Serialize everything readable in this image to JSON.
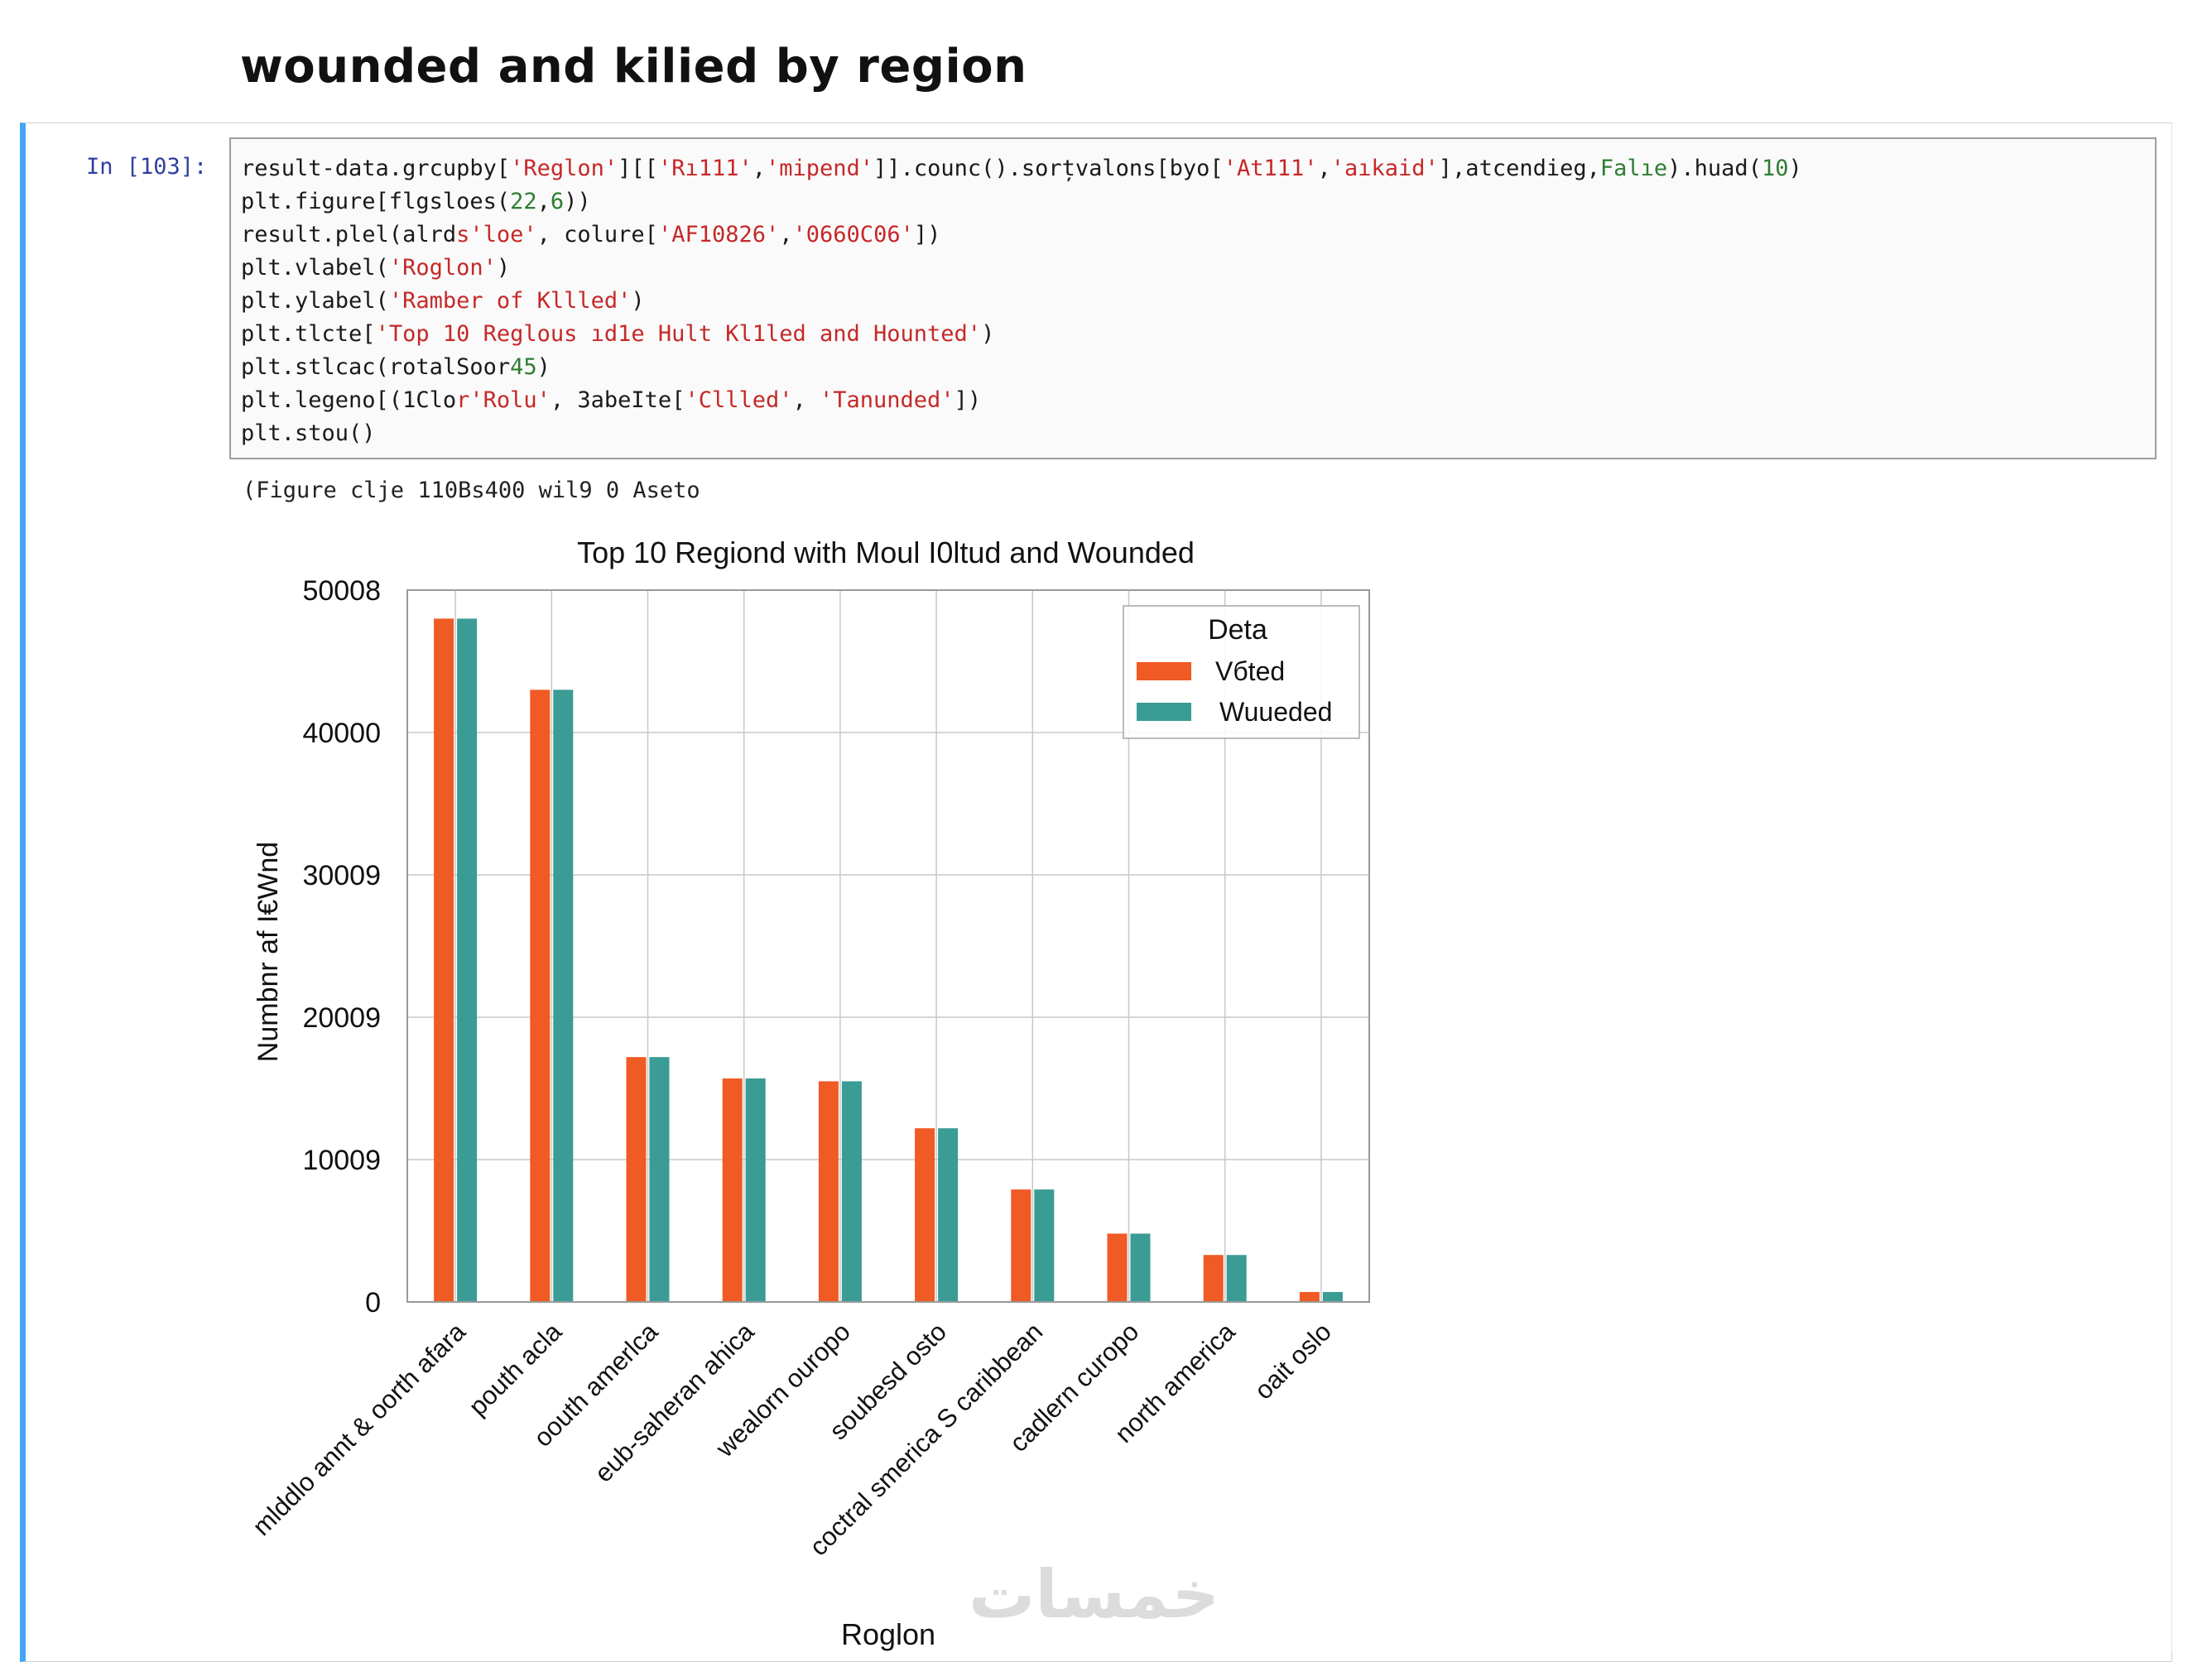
{
  "heading": "wounded and kilied by region",
  "cell": {
    "prompt": "In [103]:",
    "code": [
      [
        [
          "result-data.grcupby[",
          ""
        ],
        [
          "'Reglon'",
          "s"
        ],
        [
          "][[",
          ""
        ],
        [
          "'Rı111'",
          "s"
        ],
        [
          ",",
          ""
        ],
        [
          "'mipend'",
          "s"
        ],
        [
          "]].counc().sorțvalons[byo[",
          ""
        ],
        [
          "'At111'",
          "s"
        ],
        [
          ",",
          ""
        ],
        [
          "'aıkaid'",
          "s"
        ],
        [
          "],atcendieg,",
          ""
        ],
        [
          "Falıe",
          "n"
        ],
        [
          ").huad(",
          ""
        ],
        [
          "10",
          "n"
        ],
        [
          ")",
          ""
        ]
      ],
      [
        [
          "plt.figure[flgsloes(",
          ""
        ],
        [
          "22",
          "n"
        ],
        [
          ",",
          ""
        ],
        [
          "6",
          "n"
        ],
        [
          "))",
          ""
        ]
      ],
      [
        [
          "result.plel(alrd",
          ""
        ],
        [
          "s'loe'",
          "s"
        ],
        [
          ", colure[",
          ""
        ],
        [
          "'AF10826'",
          "s"
        ],
        [
          ",",
          ""
        ],
        [
          "'0660C06'",
          "s"
        ],
        [
          "])",
          ""
        ]
      ],
      [
        [
          "plt.vlabel(",
          ""
        ],
        [
          "'Roglon'",
          "s"
        ],
        [
          ")",
          ""
        ]
      ],
      [
        [
          "plt.ylabel(",
          ""
        ],
        [
          "'Ramber of Kllled'",
          "s"
        ],
        [
          ")",
          ""
        ]
      ],
      [
        [
          "plt.tlcte[",
          ""
        ],
        [
          "'Top 10 Reglous ıd1e Hult Kl1led and Hounted'",
          "s"
        ],
        [
          ")",
          ""
        ]
      ],
      [
        [
          "plt.stlcac(rotalSoor",
          ""
        ],
        [
          "45",
          "n"
        ],
        [
          ")",
          ""
        ]
      ],
      [
        [
          "plt.legeno[(1Clo",
          ""
        ],
        [
          "r'Rolu'",
          "s"
        ],
        [
          ", 3abeIte[",
          ""
        ],
        [
          "'Cllled'",
          "s"
        ],
        [
          ", ",
          ""
        ],
        [
          "'Tanunded'",
          "s"
        ],
        [
          "])",
          ""
        ]
      ],
      [
        [
          "plt.stou()",
          ""
        ]
      ]
    ],
    "output_text": "(Figure clje 110Bs400 wil9 0 Aseto"
  },
  "chart_data": {
    "type": "bar",
    "title": "Top 10 Regiond with Moul I0ltud and Wounded",
    "xlabel": "Roglon",
    "ylabel": "Numbnr af I€Wnd",
    "categories": [
      "mlddlo annt & oorth afara",
      "pouth acla",
      "oouth amerlca",
      "eub-saheran ahica",
      "wealorn ouropo",
      "soubesd osto",
      "coctral smerica S caribbean",
      "cadlern curopo",
      "north america",
      "oait oslo"
    ],
    "series": [
      {
        "name": "Vбted",
        "color": "#f05a24",
        "values": [
          48000,
          43000,
          17200,
          15700,
          15500,
          12200,
          7900,
          4800,
          3300,
          700
        ]
      },
      {
        "name": "Wuueded",
        "color": "#3a9c94",
        "values": [
          48000,
          43000,
          17200,
          15700,
          15500,
          12200,
          7900,
          4800,
          3300,
          700
        ]
      }
    ],
    "yticks": [
      "0",
      "10009",
      "20009",
      "30009",
      "40000",
      "50008"
    ],
    "ylim": [
      0,
      50000
    ],
    "legend": {
      "title": "Deta",
      "position": "top-right"
    },
    "grid": true,
    "xtick_rotation": 45
  },
  "watermark": "خمسات"
}
